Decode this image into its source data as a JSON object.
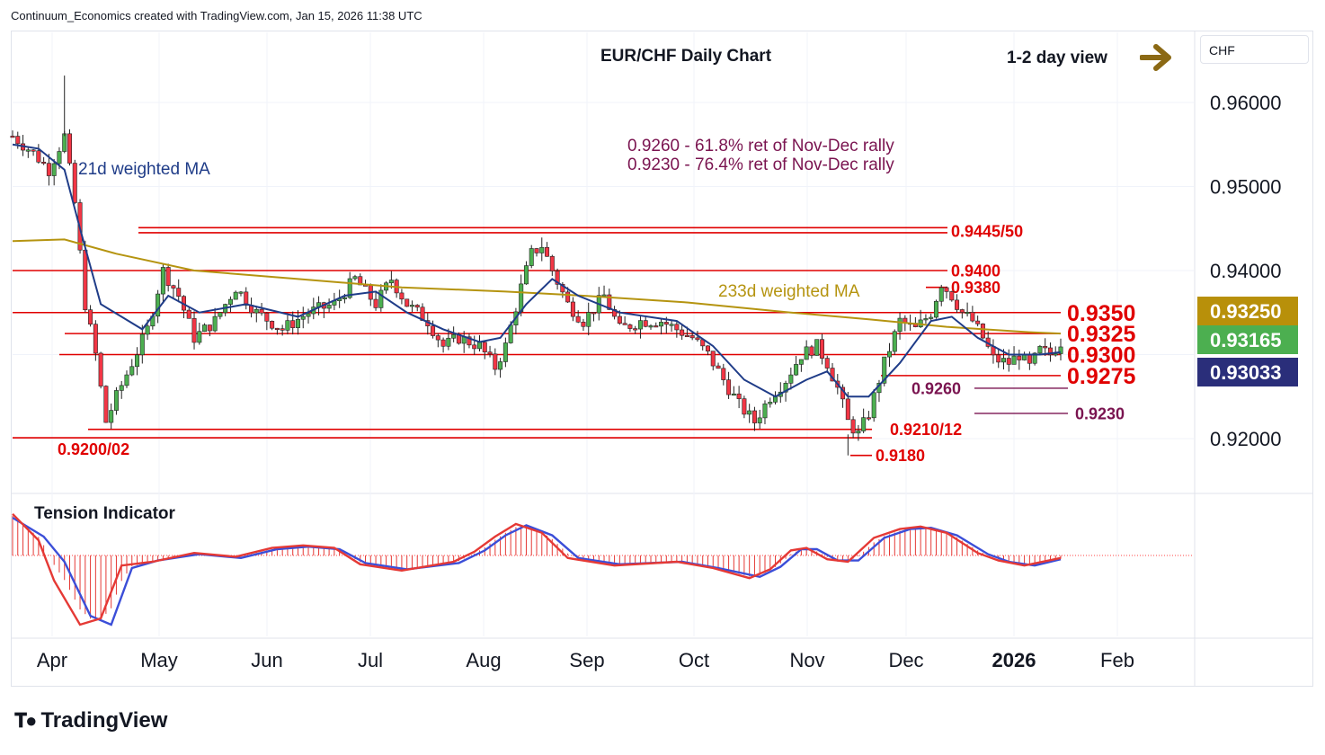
{
  "header": {
    "attribution": "Continuum_Economics created with TradingView.com, Jan 15, 2026 11:38 UTC"
  },
  "title": "EUR/CHF Daily Chart",
  "view": "1-2 day view",
  "view_arrow_color": "#8b6914",
  "unit": "CHF",
  "branding": {
    "logo_text": "TradingView",
    "icon": "tradingview-logo-icon"
  },
  "notes": [
    "0.9260 - 61.8% ret of Nov-Dec rally",
    "0.9230 - 76.4% ret of Nov-Dec rally"
  ],
  "ma_labels": {
    "ma21": "21d weighted MA",
    "ma233": "233d weighted MA"
  },
  "indicator": {
    "title": "Tension Indicator"
  },
  "colors": {
    "up": "#4caf50",
    "down": "#f23645",
    "ma21": "#1f3c88",
    "ma233": "#b59410",
    "level": "#e00000",
    "fib": "#7a1450",
    "osc_fast": "#e53935",
    "osc_slow": "#3b4ed8"
  },
  "chart_data": {
    "type": "candlestick",
    "x_axis": {
      "ticks": [
        "Apr",
        "May",
        "Jun",
        "Jul",
        "Aug",
        "Sep",
        "Oct",
        "Nov",
        "Dec",
        "2026",
        "Feb"
      ]
    },
    "y_axis": {
      "ticks": [
        "0.96000",
        "0.95000",
        "0.94000",
        "0.92000"
      ],
      "ylim": [
        0.9135,
        0.968
      ]
    },
    "price_tags": [
      {
        "value": "0.93250",
        "color": "#b8900a"
      },
      {
        "value": "0.93165",
        "color": "#4caf50"
      },
      {
        "value": "0.93033",
        "color": "#2a2e7a"
      }
    ],
    "levels": [
      {
        "label": "0.9445/50",
        "value": 0.9447
      },
      {
        "label": "0.9400",
        "value": 0.94
      },
      {
        "label": "0.9380",
        "value": 0.938
      },
      {
        "label": "0.9350",
        "value": 0.935
      },
      {
        "label": "0.9325",
        "value": 0.9325
      },
      {
        "label": "0.9300",
        "value": 0.93
      },
      {
        "label": "0.9275",
        "value": 0.9275
      },
      {
        "label": "0.9260",
        "value": 0.926
      },
      {
        "label": "0.9230",
        "value": 0.923
      },
      {
        "label": "0.9210/12",
        "value": 0.9211
      },
      {
        "label": "0.9200/02",
        "value": 0.9201
      },
      {
        "label": "0.9180",
        "value": 0.918
      }
    ],
    "close_path": [
      [
        0,
        0.956
      ],
      [
        8,
        0.954
      ],
      [
        14,
        0.952
      ],
      [
        20,
        0.956
      ],
      [
        24,
        0.948
      ],
      [
        28,
        0.936
      ],
      [
        32,
        0.93
      ],
      [
        36,
        0.922
      ],
      [
        40,
        0.925
      ],
      [
        46,
        0.929
      ],
      [
        52,
        0.933
      ],
      [
        58,
        0.94
      ],
      [
        64,
        0.937
      ],
      [
        70,
        0.932
      ],
      [
        78,
        0.934
      ],
      [
        86,
        0.938
      ],
      [
        94,
        0.935
      ],
      [
        104,
        0.933
      ],
      [
        114,
        0.935
      ],
      [
        124,
        0.936
      ],
      [
        132,
        0.939
      ],
      [
        140,
        0.936
      ],
      [
        146,
        0.939
      ],
      [
        152,
        0.936
      ],
      [
        160,
        0.934
      ],
      [
        166,
        0.931
      ],
      [
        172,
        0.932
      ],
      [
        180,
        0.931
      ],
      [
        186,
        0.9285
      ],
      [
        190,
        0.931
      ],
      [
        196,
        0.938
      ],
      [
        200,
        0.942
      ],
      [
        204,
        0.943
      ],
      [
        208,
        0.94
      ],
      [
        214,
        0.936
      ],
      [
        220,
        0.934
      ],
      [
        228,
        0.937
      ],
      [
        234,
        0.933
      ],
      [
        242,
        0.934
      ],
      [
        250,
        0.934
      ],
      [
        256,
        0.933
      ],
      [
        262,
        0.932
      ],
      [
        268,
        0.93
      ],
      [
        274,
        0.927
      ],
      [
        280,
        0.924
      ],
      [
        286,
        0.922
      ],
      [
        292,
        0.925
      ],
      [
        298,
        0.927
      ],
      [
        304,
        0.93
      ],
      [
        310,
        0.931
      ],
      [
        314,
        0.929
      ],
      [
        318,
        0.926
      ],
      [
        322,
        0.922
      ],
      [
        326,
        0.9205
      ],
      [
        330,
        0.923
      ],
      [
        336,
        0.929
      ],
      [
        342,
        0.934
      ],
      [
        348,
        0.933
      ],
      [
        354,
        0.935
      ],
      [
        358,
        0.9385
      ],
      [
        362,
        0.937
      ],
      [
        366,
        0.935
      ],
      [
        370,
        0.934
      ],
      [
        374,
        0.932
      ],
      [
        378,
        0.9295
      ],
      [
        384,
        0.929
      ],
      [
        388,
        0.93
      ],
      [
        392,
        0.9285
      ],
      [
        396,
        0.9305
      ],
      [
        400,
        0.93
      ],
      [
        404,
        0.9315
      ]
    ],
    "ma21_path": [
      [
        0,
        0.955
      ],
      [
        10,
        0.9545
      ],
      [
        20,
        0.952
      ],
      [
        26,
        0.945
      ],
      [
        34,
        0.936
      ],
      [
        42,
        0.9345
      ],
      [
        50,
        0.933
      ],
      [
        60,
        0.937
      ],
      [
        72,
        0.935
      ],
      [
        90,
        0.936
      ],
      [
        110,
        0.9345
      ],
      [
        128,
        0.937
      ],
      [
        140,
        0.9375
      ],
      [
        152,
        0.935
      ],
      [
        166,
        0.933
      ],
      [
        180,
        0.9315
      ],
      [
        188,
        0.932
      ],
      [
        198,
        0.936
      ],
      [
        208,
        0.939
      ],
      [
        218,
        0.937
      ],
      [
        234,
        0.935
      ],
      [
        256,
        0.934
      ],
      [
        270,
        0.931
      ],
      [
        282,
        0.927
      ],
      [
        294,
        0.925
      ],
      [
        306,
        0.927
      ],
      [
        314,
        0.928
      ],
      [
        322,
        0.925
      ],
      [
        330,
        0.925
      ],
      [
        342,
        0.929
      ],
      [
        354,
        0.934
      ],
      [
        362,
        0.9345
      ],
      [
        372,
        0.932
      ],
      [
        384,
        0.93
      ],
      [
        396,
        0.93
      ],
      [
        404,
        0.9303
      ]
    ],
    "ma233_path": [
      [
        0,
        0.9435
      ],
      [
        20,
        0.9437
      ],
      [
        40,
        0.942
      ],
      [
        70,
        0.94
      ],
      [
        110,
        0.939
      ],
      [
        150,
        0.938
      ],
      [
        190,
        0.9375
      ],
      [
        220,
        0.937
      ],
      [
        260,
        0.9362
      ],
      [
        300,
        0.935
      ],
      [
        330,
        0.9342
      ],
      [
        360,
        0.9333
      ],
      [
        390,
        0.9327
      ],
      [
        404,
        0.9325
      ]
    ],
    "oscillator": {
      "range": [
        -0.65,
        0.35
      ],
      "fast_path": [
        [
          0,
          0.33
        ],
        [
          10,
          0.12
        ],
        [
          16,
          -0.2
        ],
        [
          26,
          -0.55
        ],
        [
          34,
          -0.5
        ],
        [
          42,
          -0.08
        ],
        [
          54,
          -0.05
        ],
        [
          70,
          0.02
        ],
        [
          86,
          -0.01
        ],
        [
          100,
          0.06
        ],
        [
          112,
          0.08
        ],
        [
          124,
          0.06
        ],
        [
          134,
          -0.07
        ],
        [
          150,
          -0.12
        ],
        [
          170,
          -0.05
        ],
        [
          178,
          0.03
        ],
        [
          186,
          0.15
        ],
        [
          194,
          0.25
        ],
        [
          204,
          0.18
        ],
        [
          214,
          -0.02
        ],
        [
          232,
          -0.08
        ],
        [
          256,
          -0.05
        ],
        [
          270,
          -0.1
        ],
        [
          284,
          -0.18
        ],
        [
          292,
          -0.11
        ],
        [
          300,
          0.04
        ],
        [
          306,
          0.06
        ],
        [
          314,
          -0.03
        ],
        [
          322,
          -0.05
        ],
        [
          332,
          0.14
        ],
        [
          342,
          0.21
        ],
        [
          350,
          0.23
        ],
        [
          360,
          0.18
        ],
        [
          372,
          0.02
        ],
        [
          380,
          -0.04
        ],
        [
          390,
          -0.08
        ],
        [
          404,
          -0.02
        ]
      ],
      "slow_path": [
        [
          0,
          0.3
        ],
        [
          12,
          0.15
        ],
        [
          20,
          -0.05
        ],
        [
          30,
          -0.48
        ],
        [
          38,
          -0.55
        ],
        [
          46,
          -0.1
        ],
        [
          56,
          -0.04
        ],
        [
          72,
          0.01
        ],
        [
          88,
          -0.02
        ],
        [
          102,
          0.05
        ],
        [
          114,
          0.07
        ],
        [
          126,
          0.05
        ],
        [
          136,
          -0.06
        ],
        [
          152,
          -0.11
        ],
        [
          172,
          -0.06
        ],
        [
          182,
          0.04
        ],
        [
          190,
          0.16
        ],
        [
          198,
          0.24
        ],
        [
          208,
          0.16
        ],
        [
          218,
          -0.02
        ],
        [
          234,
          -0.07
        ],
        [
          258,
          -0.05
        ],
        [
          272,
          -0.1
        ],
        [
          288,
          -0.17
        ],
        [
          296,
          -0.09
        ],
        [
          304,
          0.05
        ],
        [
          310,
          0.05
        ],
        [
          318,
          -0.04
        ],
        [
          326,
          -0.04
        ],
        [
          336,
          0.14
        ],
        [
          346,
          0.21
        ],
        [
          354,
          0.22
        ],
        [
          364,
          0.16
        ],
        [
          376,
          0.01
        ],
        [
          384,
          -0.05
        ],
        [
          394,
          -0.08
        ],
        [
          404,
          -0.03
        ]
      ]
    }
  }
}
